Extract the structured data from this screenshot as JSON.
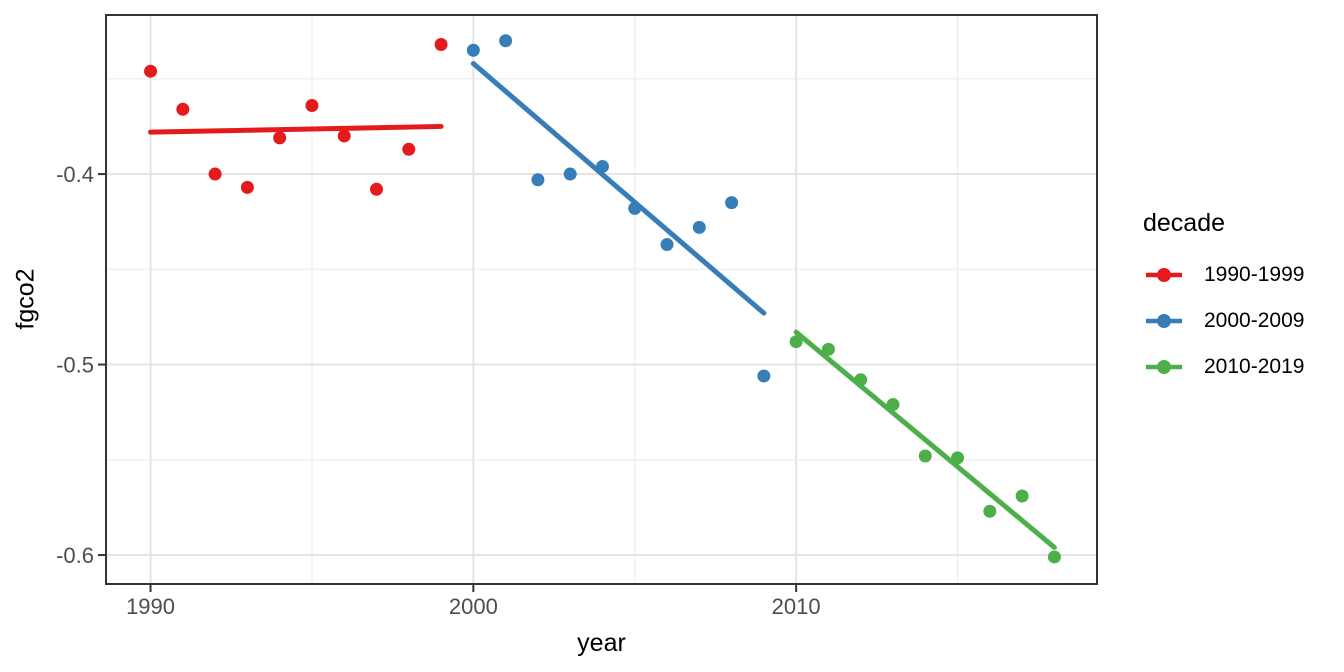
{
  "chart_data": {
    "type": "scatter",
    "title": "",
    "xlabel": "year",
    "ylabel": "fgco2",
    "legend_title": "decade",
    "legend_position": "right",
    "grid": true,
    "x_domain": [
      1988.62,
      2019.32
    ],
    "y_domain": [
      -0.6152,
      -0.3165
    ],
    "x_major_ticks": [
      1990,
      2000,
      2010
    ],
    "x_minor_ticks": [
      1995,
      2005,
      2015
    ],
    "y_major_ticks": [
      -0.4,
      -0.5,
      -0.6
    ],
    "y_tick_labels": [
      "-0.4",
      "-0.5",
      "-0.6"
    ],
    "y_minor_ticks": [
      -0.35,
      -0.45,
      -0.55
    ],
    "series": [
      {
        "name": "1990-1999",
        "color": "#E41A1C",
        "points": {
          "x": [
            1990,
            1991,
            1992,
            1993,
            1994,
            1995,
            1996,
            1997,
            1998,
            1999
          ],
          "y": [
            -0.346,
            -0.366,
            -0.4,
            -0.407,
            -0.381,
            -0.364,
            -0.38,
            -0.408,
            -0.387,
            -0.332
          ]
        },
        "trend": {
          "x": [
            1990,
            1999
          ],
          "y": [
            -0.378,
            -0.375
          ]
        }
      },
      {
        "name": "2000-2009",
        "color": "#377EB8",
        "points": {
          "x": [
            2000,
            2001,
            2002,
            2003,
            2004,
            2005,
            2006,
            2007,
            2008,
            2009
          ],
          "y": [
            -0.335,
            -0.33,
            -0.403,
            -0.4,
            -0.396,
            -0.418,
            -0.437,
            -0.428,
            -0.415,
            -0.506
          ]
        },
        "trend": {
          "x": [
            2000,
            2009
          ],
          "y": [
            -0.342,
            -0.473
          ]
        }
      },
      {
        "name": "2010-2019",
        "color": "#4DAF4A",
        "points": {
          "x": [
            2010,
            2011,
            2012,
            2013,
            2014,
            2015,
            2016,
            2017,
            2018
          ],
          "y": [
            -0.488,
            -0.492,
            -0.508,
            -0.521,
            -0.548,
            -0.549,
            -0.577,
            -0.569,
            -0.601
          ]
        },
        "trend": {
          "x": [
            2010,
            2018
          ],
          "y": [
            -0.483,
            -0.596
          ]
        }
      }
    ]
  }
}
